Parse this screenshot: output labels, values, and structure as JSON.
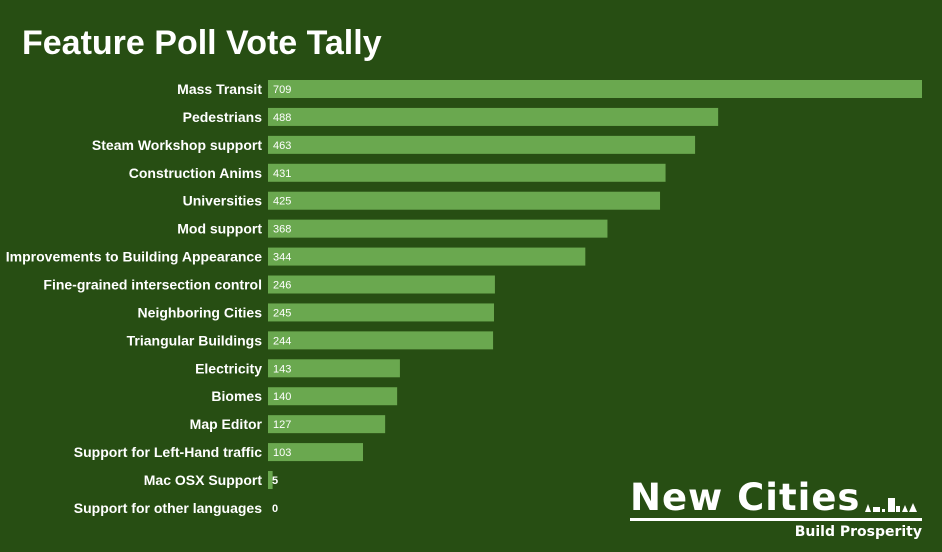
{
  "chart_data": {
    "type": "bar",
    "orientation": "horizontal",
    "title": "Feature Poll Vote Tally",
    "categories": [
      "Mass Transit",
      "Pedestrians",
      "Steam Workshop support",
      "Construction Anims",
      "Universities",
      "Mod support",
      "Improvements to Building Appearance",
      "Fine-grained intersection control",
      "Neighboring Cities",
      "Triangular Buildings",
      "Electricity",
      "Biomes",
      "Map Editor",
      "Support for Left-Hand traffic",
      "Mac OSX Support",
      "Support for other languages"
    ],
    "values": [
      709,
      488,
      463,
      431,
      425,
      368,
      344,
      246,
      245,
      244,
      143,
      140,
      127,
      103,
      5,
      0
    ],
    "xlim": [
      0,
      709
    ],
    "grid": false,
    "data_labels": true,
    "colors": {
      "bar": "#6aa84f",
      "background": "#274e13",
      "text": "#ffffff"
    }
  },
  "logo": {
    "name": "New Cities",
    "tagline": "Build Prosperity"
  }
}
